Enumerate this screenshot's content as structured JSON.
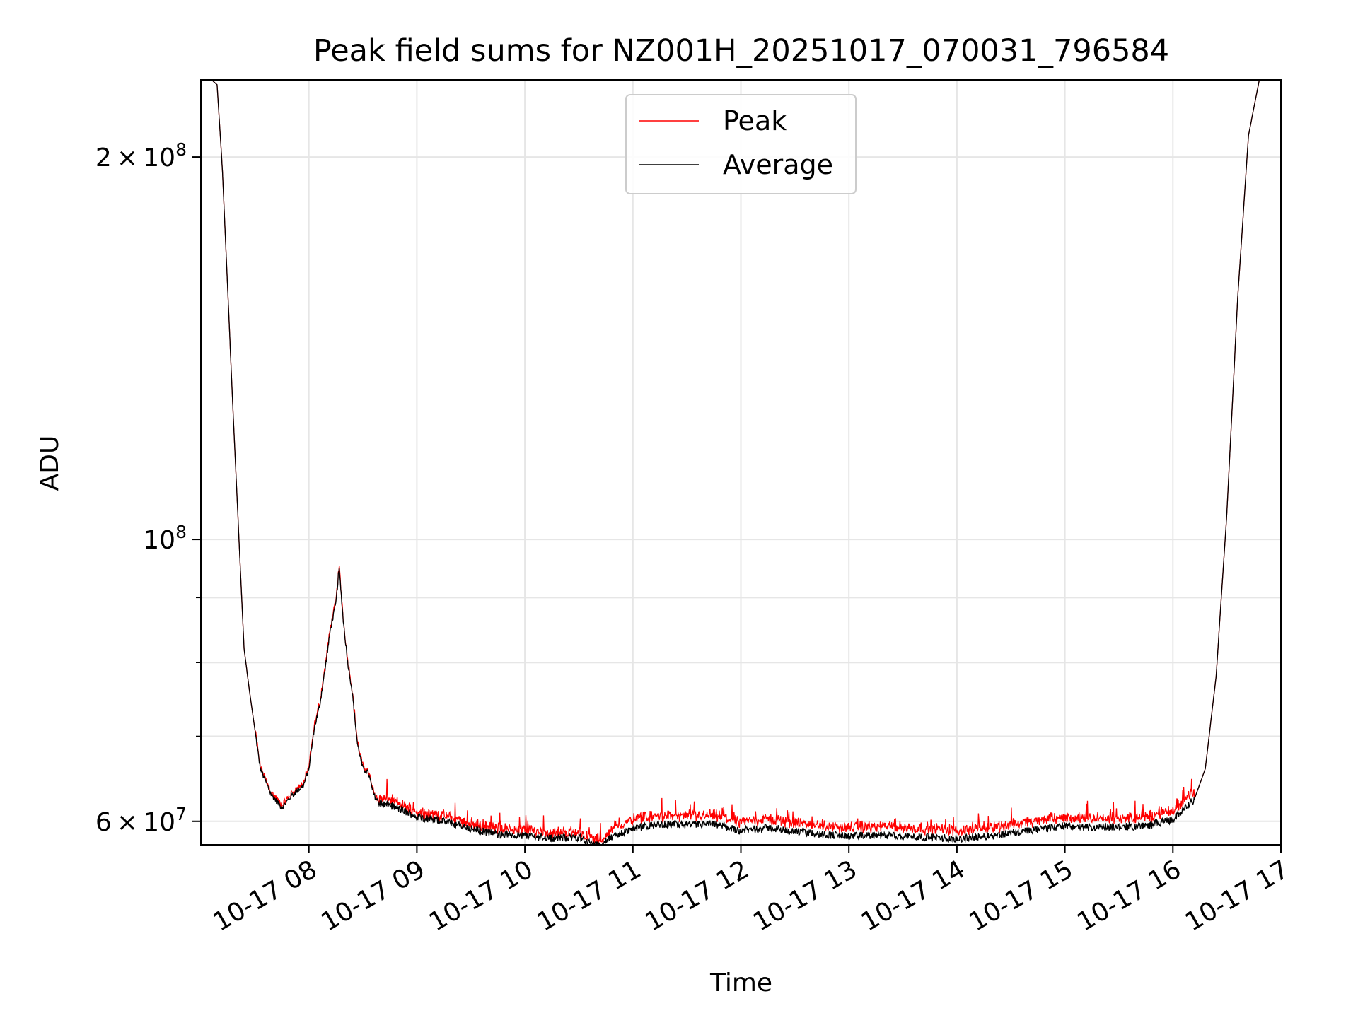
{
  "chart_data": {
    "type": "line",
    "title": "Peak field sums for NZ001H_20251017_070031_796584",
    "xlabel": "Time",
    "ylabel": "ADU",
    "yscale": "log",
    "ylim": [
      57500000,
      230000000
    ],
    "xlim_hours": [
      7.0,
      17.0
    ],
    "grid": true,
    "legend_position": "upper center",
    "x_ticks": [
      {
        "value": 8,
        "label": "10-17 08"
      },
      {
        "value": 9,
        "label": "10-17 09"
      },
      {
        "value": 10,
        "label": "10-17 10"
      },
      {
        "value": 11,
        "label": "10-17 11"
      },
      {
        "value": 12,
        "label": "10-17 12"
      },
      {
        "value": 13,
        "label": "10-17 13"
      },
      {
        "value": 14,
        "label": "10-17 14"
      },
      {
        "value": 15,
        "label": "10-17 15"
      },
      {
        "value": 16,
        "label": "10-17 16"
      },
      {
        "value": 17,
        "label": "10-17 17"
      }
    ],
    "y_major_ticks": [
      {
        "value": 60000000,
        "label": "6 × 10⁷",
        "mant": "6",
        "exp": "7"
      },
      {
        "value": 100000000,
        "label": "10⁸",
        "mant": "",
        "exp": "8"
      },
      {
        "value": 200000000,
        "label": "2 × 10⁸",
        "mant": "2",
        "exp": "8"
      }
    ],
    "y_minor_ticks": [
      70000000,
      80000000,
      90000000
    ],
    "series": [
      {
        "name": "Peak",
        "color": "#ff0000"
      },
      {
        "name": "Average",
        "color": "#000000"
      }
    ],
    "average_profile": {
      "hours": [
        7.0,
        7.1,
        7.15,
        7.2,
        7.3,
        7.4,
        7.45,
        7.55,
        7.65,
        7.75,
        7.85,
        7.95,
        8.0,
        8.05,
        8.1,
        8.15,
        8.2,
        8.25,
        8.28,
        8.32,
        8.36,
        8.4,
        8.45,
        8.5,
        8.55,
        8.6,
        8.65,
        8.75,
        9.0,
        9.25,
        9.5,
        9.75,
        10.0,
        10.25,
        10.5,
        10.6,
        10.7,
        10.8,
        11.0,
        11.25,
        11.5,
        11.75,
        12.0,
        12.25,
        12.5,
        12.75,
        13.0,
        13.25,
        13.5,
        13.75,
        14.0,
        14.25,
        14.5,
        14.75,
        15.0,
        15.25,
        15.5,
        15.75,
        16.0,
        16.2,
        16.3,
        16.4,
        16.5,
        16.6,
        16.7,
        16.8,
        16.85,
        17.0
      ],
      "adu": [
        230000000,
        230000000,
        228000000,
        195000000,
        125000000,
        82000000,
        76000000,
        66000000,
        63000000,
        61500000,
        63000000,
        64000000,
        66000000,
        71000000,
        74000000,
        79000000,
        85000000,
        89000000,
        95000000,
        86000000,
        80000000,
        76000000,
        69000000,
        66000000,
        65500000,
        63000000,
        62000000,
        61800000,
        60500000,
        60000000,
        59200000,
        58600000,
        58500000,
        58200000,
        58300000,
        57700000,
        57400000,
        58300000,
        59200000,
        59700000,
        59600000,
        59700000,
        59000000,
        59300000,
        58900000,
        58600000,
        58400000,
        58500000,
        58400000,
        58300000,
        58100000,
        58400000,
        58700000,
        59100000,
        59500000,
        59300000,
        59400000,
        59500000,
        60200000,
        62500000,
        66000000,
        78000000,
        105000000,
        155000000,
        208000000,
        230000000,
        230000000,
        230000000
      ]
    }
  }
}
